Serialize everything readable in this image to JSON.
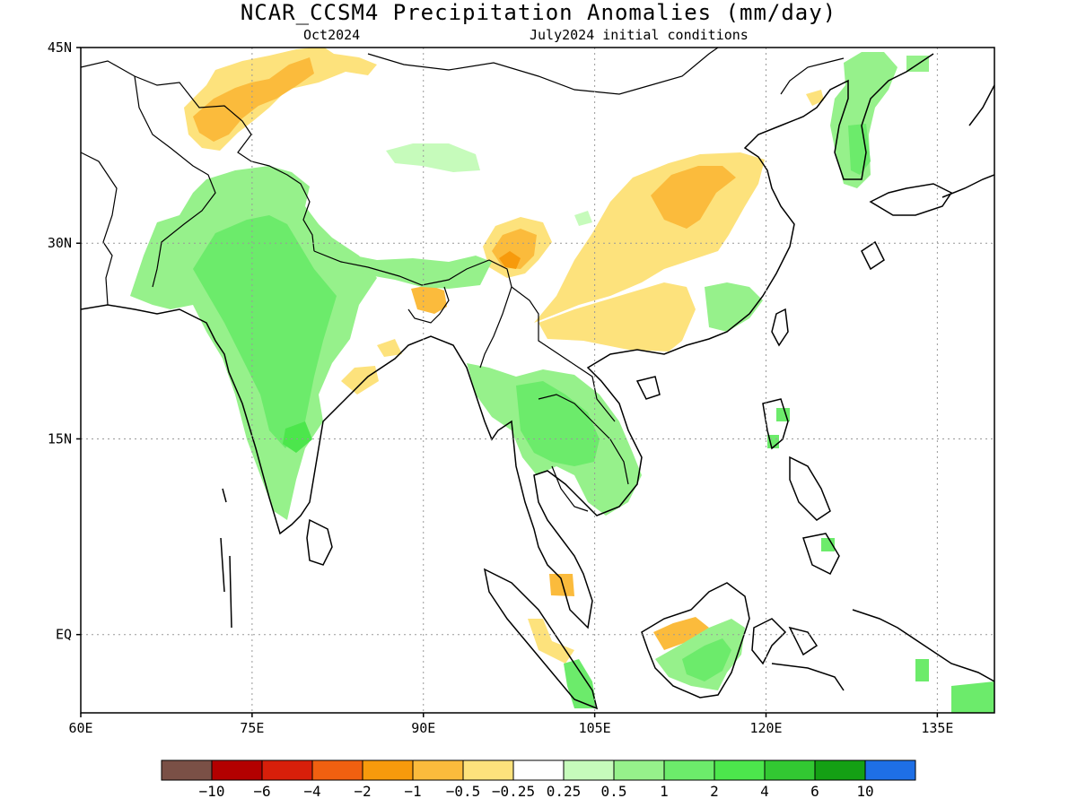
{
  "header": {
    "title": "NCAR_CCSM4 Precipitation Anomalies (mm/day)",
    "valid_month": "Oct2024",
    "init": "July2024 initial conditions"
  },
  "map": {
    "lon_range": [
      60,
      140
    ],
    "lat_range": [
      -6,
      45
    ],
    "lat_ticks": [
      {
        "value": 45,
        "label": "45N"
      },
      {
        "value": 30,
        "label": "30N"
      },
      {
        "value": 15,
        "label": "15N"
      },
      {
        "value": 0,
        "label": "EQ"
      }
    ],
    "lon_ticks": [
      {
        "value": 60,
        "label": "60E"
      },
      {
        "value": 75,
        "label": "75E"
      },
      {
        "value": 90,
        "label": "90E"
      },
      {
        "value": 105,
        "label": "105E"
      },
      {
        "value": 120,
        "label": "120E"
      },
      {
        "value": 135,
        "label": "135E"
      }
    ],
    "gridlines": "dotted"
  },
  "colorbar": {
    "colors": [
      "#7a5046",
      "#b30000",
      "#d81f0a",
      "#f06010",
      "#f79a0c",
      "#fbbb3c",
      "#fde27c",
      "#ffffff",
      "#c6fbbb",
      "#96f18b",
      "#6ceb6b",
      "#4ce64c",
      "#32c832",
      "#14a014",
      "#1e6fe6"
    ],
    "labels": [
      "−10",
      "−6",
      "−4",
      "−2",
      "−1",
      "−0.5",
      "−0.25",
      "0.25",
      "0.5",
      "1",
      "2",
      "4",
      "6",
      "10"
    ]
  },
  "anomaly_regions": [
    {
      "name": "india-wet",
      "value": 1
    },
    {
      "name": "india-wetter",
      "value": 2
    },
    {
      "name": "himalaya-wet",
      "value": 1
    },
    {
      "name": "indochina-wet",
      "value": 1
    },
    {
      "name": "thailand-wetter",
      "value": 2
    },
    {
      "name": "korea-wet",
      "value": 1
    },
    {
      "name": "south-china-wet",
      "value": 1
    },
    {
      "name": "borneo-wet",
      "value": 1
    },
    {
      "name": "borneo-wetter",
      "value": 2
    },
    {
      "name": "tibet-wet",
      "value": 0.5
    },
    {
      "name": "central-china-dry",
      "value": -0.5
    },
    {
      "name": "central-china-drier",
      "value": -1
    },
    {
      "name": "south-china-dry",
      "value": -0.5
    },
    {
      "name": "burma-china-dry",
      "value": -1
    },
    {
      "name": "burma-china-drier",
      "value": -2
    },
    {
      "name": "bangladesh-dry",
      "value": -0.5
    },
    {
      "name": "afghanistan-dry",
      "value": -0.5
    },
    {
      "name": "afghanistan-drier",
      "value": -1
    },
    {
      "name": "borneo-dry",
      "value": -1
    },
    {
      "name": "sumatra-dry",
      "value": -0.5
    },
    {
      "name": "malaya-dry",
      "value": -0.5
    }
  ]
}
